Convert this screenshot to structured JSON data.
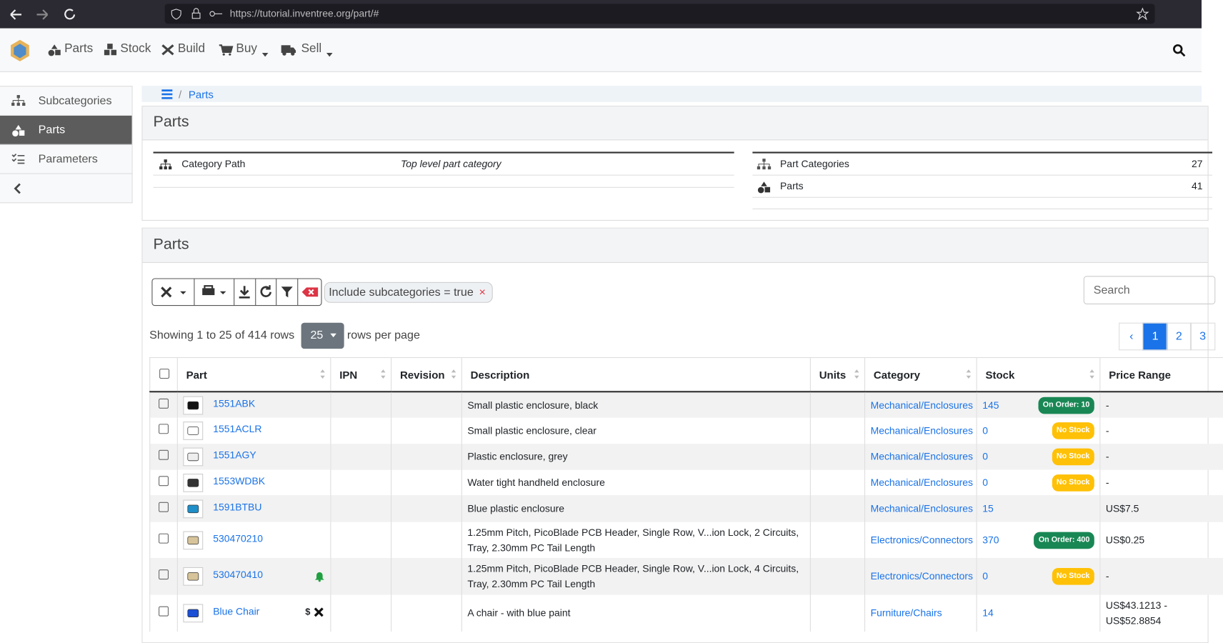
{
  "browser": {
    "url": "https://tutorial.inventree.org/part/#"
  },
  "navbar": {
    "items": [
      "Parts",
      "Stock",
      "Build",
      "Buy",
      "Sell"
    ]
  },
  "sidebar": {
    "items": [
      "Subcategories",
      "Parts",
      "Parameters"
    ]
  },
  "breadcrumb": {
    "current": "Parts"
  },
  "category_panel": {
    "title": "Parts",
    "path_label": "Category Path",
    "path_value": "Top level part category",
    "stats": [
      {
        "label": "Part Categories",
        "value": "27"
      },
      {
        "label": "Parts",
        "value": "41"
      }
    ]
  },
  "parts_panel": {
    "title": "Parts",
    "filter": "Include subcategories = true",
    "search_placeholder": "Search",
    "showing": "Showing 1 to 25 of 414 rows",
    "page_size": "25",
    "rows_per_page": "rows per page",
    "pages": [
      "‹",
      "1",
      "2",
      "3"
    ]
  },
  "table": {
    "headers": [
      "Part",
      "IPN",
      "Revision",
      "Description",
      "Units",
      "Category",
      "Stock",
      "Price Range"
    ],
    "rows": [
      {
        "name": "1551ABK",
        "description": "Small plastic enclosure, black",
        "category": "Mechanical/Enclosures",
        "stock": "145",
        "badge": "On Order: 10",
        "price": "-"
      },
      {
        "name": "1551ACLR",
        "description": "Small plastic enclosure, clear",
        "category": "Mechanical/Enclosures",
        "stock": "0",
        "badge": "No Stock",
        "price": "-"
      },
      {
        "name": "1551AGY",
        "description": "Plastic enclosure, grey",
        "category": "Mechanical/Enclosures",
        "stock": "0",
        "badge": "No Stock",
        "price": "-"
      },
      {
        "name": "1553WDBK",
        "description": "Water tight handheld enclosure",
        "category": "Mechanical/Enclosures",
        "stock": "0",
        "badge": "No Stock",
        "price": "-"
      },
      {
        "name": "1591BTBU",
        "description": "Blue plastic enclosure",
        "category": "Mechanical/Enclosures",
        "stock": "15",
        "price": "US$7.5"
      },
      {
        "name": "530470210",
        "description": "1.25mm Pitch, PicoBlade PCB Header, Single Row, V...ion Lock, 2 Circuits, Tray, 2.30mm PC Tail Length",
        "category": "Electronics/Connectors",
        "stock": "370",
        "badge": "On Order: 400",
        "price": "US$0.25"
      },
      {
        "name": "530470410",
        "alert": true,
        "description": "1.25mm Pitch, PicoBlade PCB Header, Single Row, V...ion Lock, 4 Circuits, Tray, 2.30mm PC Tail Length",
        "category": "Electronics/Connectors",
        "stock": "0",
        "badge": "No Stock",
        "price": "-"
      },
      {
        "name": "Blue Chair",
        "flag": "$",
        "buildable": true,
        "description": "A chair - with blue paint",
        "category": "Furniture/Chairs",
        "stock": "14",
        "price": "US$43.1213 - US$52.8854"
      }
    ]
  }
}
